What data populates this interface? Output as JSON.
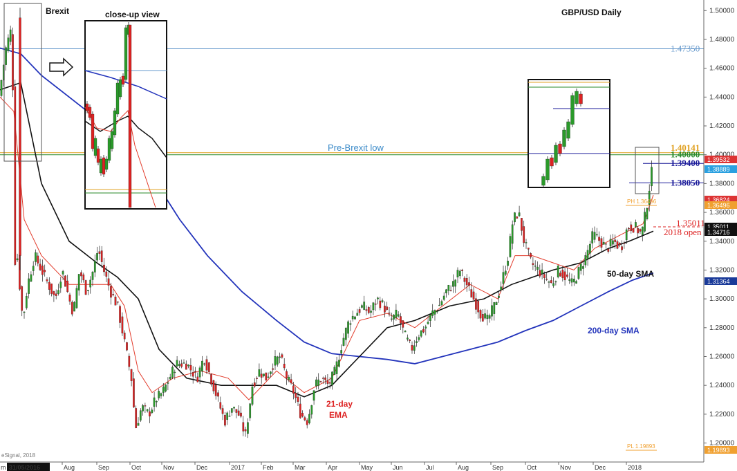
{
  "chart_data": {
    "type": "candlestick",
    "title": "GBP/USD Daily",
    "ylim": [
      1.1945,
      1.5035
    ],
    "y_ticks": [
      "1.50000",
      "1.48000",
      "1.46000",
      "1.44000",
      "1.42000",
      "1.40000",
      "1.38000",
      "1.36000",
      "1.34000",
      "1.32000",
      "1.30000",
      "1.28000",
      "1.26000",
      "1.24000",
      "1.22000",
      "1.20000"
    ],
    "x_ticks": [
      "Aug",
      "Sep",
      "Oct",
      "Nov",
      "Dec",
      "2017",
      "Feb",
      "Mar",
      "Apr",
      "May",
      "Jun",
      "Jul",
      "Aug",
      "Sep",
      "Oct",
      "Nov",
      "Dec",
      "2018"
    ],
    "x_start_label": "31/05/2016",
    "x_start_prefix": "m",
    "copyright": "eSignal, 2018",
    "price_path": [
      [
        0,
        1.445
      ],
      [
        9,
        1.475
      ],
      [
        18,
        1.49
      ],
      [
        20,
        1.32
      ],
      [
        24,
        1.335
      ],
      [
        30,
        1.3
      ],
      [
        33,
        1.285
      ],
      [
        40,
        1.31
      ],
      [
        50,
        1.33
      ],
      [
        60,
        1.32
      ],
      [
        70,
        1.31
      ],
      [
        80,
        1.3
      ],
      [
        90,
        1.32
      ],
      [
        100,
        1.3
      ],
      [
        106,
        1.29
      ],
      [
        115,
        1.32
      ],
      [
        125,
        1.305
      ],
      [
        135,
        1.32
      ],
      [
        142,
        1.335
      ],
      [
        150,
        1.32
      ],
      [
        160,
        1.305
      ],
      [
        170,
        1.295
      ],
      [
        180,
        1.27
      ],
      [
        190,
        1.245
      ],
      [
        196,
        1.21
      ],
      [
        205,
        1.225
      ],
      [
        215,
        1.22
      ],
      [
        225,
        1.23
      ],
      [
        235,
        1.235
      ],
      [
        245,
        1.245
      ],
      [
        255,
        1.255
      ],
      [
        270,
        1.255
      ],
      [
        285,
        1.245
      ],
      [
        295,
        1.26
      ],
      [
        305,
        1.245
      ],
      [
        315,
        1.23
      ],
      [
        325,
        1.215
      ],
      [
        335,
        1.225
      ],
      [
        345,
        1.22
      ],
      [
        355,
        1.205
      ],
      [
        365,
        1.24
      ],
      [
        375,
        1.25
      ],
      [
        385,
        1.245
      ],
      [
        395,
        1.255
      ],
      [
        405,
        1.26
      ],
      [
        415,
        1.245
      ],
      [
        425,
        1.235
      ],
      [
        435,
        1.22
      ],
      [
        445,
        1.215
      ],
      [
        455,
        1.24
      ],
      [
        465,
        1.245
      ],
      [
        475,
        1.24
      ],
      [
        485,
        1.25
      ],
      [
        495,
        1.27
      ],
      [
        505,
        1.285
      ],
      [
        515,
        1.29
      ],
      [
        525,
        1.295
      ],
      [
        535,
        1.29
      ],
      [
        545,
        1.3
      ],
      [
        555,
        1.295
      ],
      [
        565,
        1.285
      ],
      [
        575,
        1.29
      ],
      [
        585,
        1.275
      ],
      [
        595,
        1.265
      ],
      [
        605,
        1.275
      ],
      [
        615,
        1.28
      ],
      [
        625,
        1.29
      ],
      [
        635,
        1.295
      ],
      [
        645,
        1.305
      ],
      [
        655,
        1.31
      ],
      [
        665,
        1.32
      ],
      [
        675,
        1.31
      ],
      [
        685,
        1.3
      ],
      [
        695,
        1.29
      ],
      [
        705,
        1.285
      ],
      [
        715,
        1.295
      ],
      [
        725,
        1.31
      ],
      [
        735,
        1.33
      ],
      [
        742,
        1.355
      ],
      [
        750,
        1.36
      ],
      [
        758,
        1.34
      ],
      [
        768,
        1.325
      ],
      [
        778,
        1.32
      ],
      [
        788,
        1.315
      ],
      [
        798,
        1.31
      ],
      [
        808,
        1.32
      ],
      [
        818,
        1.315
      ],
      [
        828,
        1.31
      ],
      [
        838,
        1.32
      ],
      [
        848,
        1.33
      ],
      [
        858,
        1.345
      ],
      [
        868,
        1.34
      ],
      [
        878,
        1.335
      ],
      [
        888,
        1.34
      ],
      [
        898,
        1.335
      ],
      [
        908,
        1.35
      ],
      [
        918,
        1.35
      ],
      [
        928,
        1.345
      ],
      [
        934,
        1.36
      ],
      [
        940,
        1.38
      ],
      [
        945,
        1.395
      ]
    ],
    "ema21_path": [
      [
        0,
        1.44
      ],
      [
        20,
        1.43
      ],
      [
        35,
        1.355
      ],
      [
        60,
        1.33
      ],
      [
        100,
        1.31
      ],
      [
        130,
        1.31
      ],
      [
        160,
        1.31
      ],
      [
        180,
        1.295
      ],
      [
        200,
        1.25
      ],
      [
        220,
        1.235
      ],
      [
        250,
        1.245
      ],
      [
        290,
        1.25
      ],
      [
        330,
        1.245
      ],
      [
        360,
        1.23
      ],
      [
        400,
        1.25
      ],
      [
        440,
        1.235
      ],
      [
        480,
        1.245
      ],
      [
        520,
        1.285
      ],
      [
        560,
        1.29
      ],
      [
        600,
        1.28
      ],
      [
        640,
        1.295
      ],
      [
        680,
        1.31
      ],
      [
        720,
        1.3
      ],
      [
        745,
        1.33
      ],
      [
        770,
        1.33
      ],
      [
        800,
        1.325
      ],
      [
        830,
        1.32
      ],
      [
        860,
        1.335
      ],
      [
        900,
        1.345
      ],
      [
        930,
        1.352
      ],
      [
        945,
        1.372
      ]
    ],
    "sma50_path": [
      [
        0,
        1.445
      ],
      [
        30,
        1.45
      ],
      [
        60,
        1.38
      ],
      [
        100,
        1.34
      ],
      [
        140,
        1.325
      ],
      [
        170,
        1.315
      ],
      [
        200,
        1.3
      ],
      [
        230,
        1.265
      ],
      [
        270,
        1.245
      ],
      [
        320,
        1.24
      ],
      [
        360,
        1.24
      ],
      [
        400,
        1.24
      ],
      [
        440,
        1.232
      ],
      [
        480,
        1.24
      ],
      [
        520,
        1.26
      ],
      [
        560,
        1.28
      ],
      [
        600,
        1.285
      ],
      [
        650,
        1.295
      ],
      [
        700,
        1.3
      ],
      [
        740,
        1.31
      ],
      [
        770,
        1.315
      ],
      [
        800,
        1.32
      ],
      [
        840,
        1.325
      ],
      [
        880,
        1.335
      ],
      [
        910,
        1.34
      ],
      [
        945,
        1.347
      ]
    ],
    "sma200_path": [
      [
        0,
        1.474
      ],
      [
        30,
        1.47
      ],
      [
        60,
        1.455
      ],
      [
        100,
        1.44
      ],
      [
        140,
        1.425
      ],
      [
        180,
        1.41
      ],
      [
        220,
        1.385
      ],
      [
        260,
        1.355
      ],
      [
        300,
        1.33
      ],
      [
        350,
        1.305
      ],
      [
        400,
        1.285
      ],
      [
        440,
        1.27
      ],
      [
        480,
        1.262
      ],
      [
        520,
        1.26
      ],
      [
        560,
        1.258
      ],
      [
        600,
        1.255
      ],
      [
        640,
        1.26
      ],
      [
        680,
        1.265
      ],
      [
        720,
        1.27
      ],
      [
        760,
        1.278
      ],
      [
        800,
        1.285
      ],
      [
        840,
        1.295
      ],
      [
        880,
        1.305
      ],
      [
        915,
        1.313
      ],
      [
        945,
        1.318
      ]
    ],
    "levels": [
      {
        "label": "1.47350",
        "value": 1.4735,
        "color": "#6699cc"
      },
      {
        "label": "1.40141",
        "value": 1.40141,
        "color": "#e0a020"
      },
      {
        "label": "1.40000",
        "value": 1.4,
        "color": "#2a8a2a"
      },
      {
        "label": "1.39400",
        "value": 1.394,
        "color": "#1a1a99"
      },
      {
        "label": "1.38050",
        "value": 1.3805,
        "color": "#1a1a99"
      },
      {
        "label": "1.35011",
        "value": 1.35011,
        "color": "#dd2222"
      }
    ],
    "badges": [
      {
        "label": "1.39532",
        "value": 1.39532,
        "bg": "#dd3333",
        "fg": "#ffffff"
      },
      {
        "label": "1.38889",
        "value": 1.38889,
        "bg": "#2aa0e0",
        "fg": "#ffffff"
      },
      {
        "label": "1.36824",
        "value": 1.36824,
        "bg": "#dd3333",
        "fg": "#ffffff"
      },
      {
        "label": "1.36496",
        "value": 1.36496,
        "bg": "#f0a030",
        "fg": "#ffffff"
      },
      {
        "label": "1.35011",
        "value": 1.35011,
        "bg": "#111111",
        "fg": "#ffffff"
      },
      {
        "label": "1.34716",
        "value": 1.34716,
        "bg": "#111111",
        "fg": "#ffffff"
      },
      {
        "label": "1.31364",
        "value": 1.31364,
        "bg": "#1a3a99",
        "fg": "#ffffff"
      },
      {
        "label": "1.19893",
        "value": 1.19893,
        "bg": "#f0a030",
        "fg": "#ffffff"
      }
    ],
    "annotations": {
      "brexit": "Brexit",
      "close_up": "close-up view",
      "pre_brexit_low": "Pre-Brexit low",
      "open_2018_value": "1.35011",
      "open_2018": "2018 open",
      "sma50": "50-day SMA",
      "sma200": "200-day SMA",
      "ema21_line1": "21-day",
      "ema21_line2": "EMA",
      "ph": "PH 1.36496",
      "pl": "PL 1.19893"
    }
  },
  "colors": {
    "up": "#2a9a2a",
    "down": "#dd2222",
    "ema21": "#e23b2b",
    "sma50": "#111111",
    "sma200": "#2233bb",
    "axis": "#666666"
  }
}
